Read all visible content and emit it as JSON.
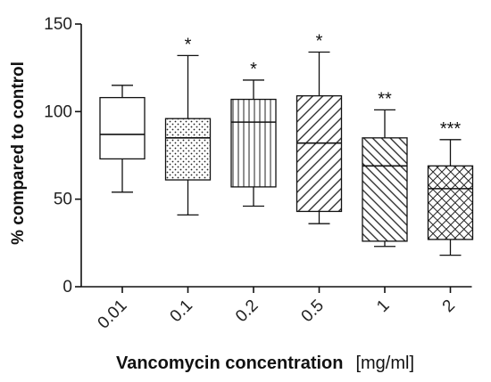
{
  "chart_data": {
    "type": "box",
    "xlabel": "Vancomycin concentration",
    "xlabel_unit": "[mg/ml]",
    "ylabel": "% compared to control",
    "ylim": [
      0,
      150
    ],
    "yticks": [
      0,
      50,
      100,
      150
    ],
    "grid": false,
    "categories": [
      "0.01",
      "0.1",
      "0.2",
      "0.5",
      "1",
      "2"
    ],
    "boxes": [
      {
        "category": "0.01",
        "min": 54,
        "q1": 73,
        "median": 87,
        "q3": 108,
        "max": 115,
        "significance": "",
        "pattern": "none"
      },
      {
        "category": "0.1",
        "min": 41,
        "q1": 61,
        "median": 85,
        "q3": 96,
        "max": 132,
        "significance": "*",
        "pattern": "dots"
      },
      {
        "category": "0.2",
        "min": 46,
        "q1": 57,
        "median": 94,
        "q3": 107,
        "max": 118,
        "significance": "*",
        "pattern": "vertical-lines"
      },
      {
        "category": "0.5",
        "min": 36,
        "q1": 43,
        "median": 82,
        "q3": 109,
        "max": 134,
        "significance": "*",
        "pattern": "diagonal-up"
      },
      {
        "category": "1",
        "min": 23,
        "q1": 26,
        "median": 69,
        "q3": 85,
        "max": 101,
        "significance": "**",
        "pattern": "diagonal-down"
      },
      {
        "category": "2",
        "min": 18,
        "q1": 27,
        "median": 56,
        "q3": 69,
        "max": 84,
        "significance": "***",
        "pattern": "crosshatch"
      }
    ]
  }
}
